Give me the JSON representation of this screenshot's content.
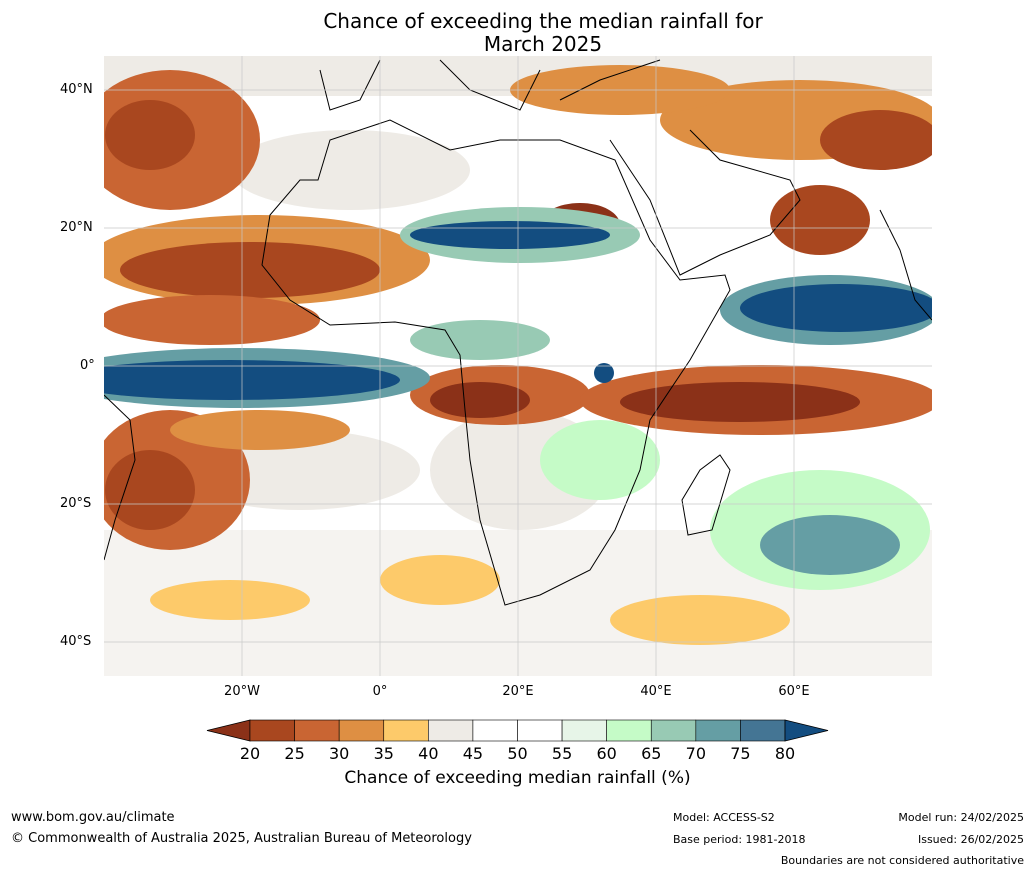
{
  "title": {
    "line1": "Chance of exceeding the median rainfall for",
    "line2": "March 2025"
  },
  "latitude_labels": [
    "40°N",
    "20°N",
    "0°",
    "20°S",
    "40°S"
  ],
  "longitude_labels": [
    "20°W",
    "0°",
    "20°E",
    "40°E",
    "60°E"
  ],
  "colorbar": {
    "ticks": [
      "20",
      "25",
      "30",
      "35",
      "40",
      "45",
      "50",
      "55",
      "60",
      "65",
      "70",
      "75",
      "80"
    ],
    "colors": [
      "#8b3118",
      "#a9471f",
      "#c96533",
      "#de8f43",
      "#fdca6a",
      "#eeebe6",
      "#ffffff",
      "#ffffff",
      "#e7f5e8",
      "#c5fbc7",
      "#98cab4",
      "#659ea4",
      "#447594",
      "#134d80"
    ],
    "label": "Chance of exceeding median rainfall (%)"
  },
  "footer": {
    "website": "www.bom.gov.au/climate",
    "copyright": "© Commonwealth of Australia 2025, Australian Bureau of Meteorology",
    "model": "Model: ACCESS-S2",
    "base_period": "Base period: 1981-2018",
    "model_run": "Model run: 24/02/2025",
    "issued": "Issued: 26/02/2025",
    "boundaries_note": "Boundaries are not considered authoritative"
  }
}
